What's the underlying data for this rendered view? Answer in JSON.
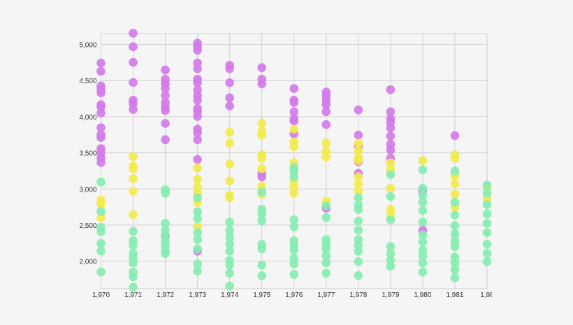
{
  "chart_data": {
    "type": "scatter",
    "title": "",
    "xlabel": "",
    "ylabel": "",
    "xlim": [
      1970,
      1982
    ],
    "ylim": [
      1620,
      5150
    ],
    "grid": true,
    "legend": "none",
    "x_ticks": [
      "1,970",
      "1,971",
      "1,972",
      "1,973",
      "1,974",
      "1,975",
      "1,976",
      "1,977",
      "1,978",
      "1,979",
      "1,980",
      "1,981",
      "1,98"
    ],
    "y_ticks": [
      "2,000",
      "2,500",
      "3,000",
      "3,500",
      "4,000",
      "4,500",
      "5,000"
    ],
    "y_tick_values": [
      2000,
      2500,
      3000,
      3500,
      4000,
      4500,
      5000
    ],
    "series": [
      {
        "color": "#d27be9",
        "points": {
          "1970": [
            4742,
            4627,
            4425,
            4377,
            4329,
            4165,
            4136,
            4050,
            3847,
            3750,
            3712,
            3558,
            3500,
            3432,
            3365
          ],
          "1971": [
            5154,
            4968,
            4752,
            4473,
            4228,
            4180,
            4100
          ],
          "1972": [
            4646,
            4518,
            4453,
            4389,
            4293,
            4196,
            4132,
            4084,
            3907,
            3682,
            2348
          ],
          "1973": [
            5016,
            4968,
            4920,
            4743,
            4663,
            4518,
            4470,
            4373,
            4293,
            4228,
            4116,
            4068,
            4003,
            3827,
            3778,
            3682,
            3409,
            2139
          ],
          "1974": [
            4711,
            4663,
            4470,
            4261,
            4148
          ],
          "1975": [
            4678,
            4518,
            4453,
            3216,
            3167
          ],
          "1976": [
            4389,
            4228,
            4196,
            4068,
            3971,
            3939,
            3762
          ],
          "1977": [
            4341,
            4293,
            4228,
            4164,
            4068,
            3891,
            2733
          ],
          "1978": [
            4093,
            3746,
            3586,
            3377,
            3216
          ],
          "1979": [
            4373,
            4068,
            3971,
            3923,
            3843,
            3730,
            3618,
            3537,
            3425
          ],
          "1980": [
            2974,
            2428
          ],
          "1981": [
            3737
          ]
        }
      },
      {
        "color": "#f1ea4c",
        "points": {
          "1970": [
            2844,
            2787,
            2604
          ],
          "1971": [
            3447,
            3312,
            3280,
            3142,
            2968,
            2643
          ],
          "1973": [
            3290,
            3136,
            3023,
            2943,
            2814,
            2476
          ],
          "1974": [
            3785,
            3634,
            3344,
            3110,
            2910,
            2878
          ],
          "1975": [
            3907,
            3794,
            3746,
            3473,
            3425,
            3280,
            3039,
            2926
          ],
          "1976": [
            3827,
            3650,
            3586,
            3361,
            3264,
            3103,
            3023,
            2943
          ],
          "1977": [
            3634,
            3521,
            3441,
            2830
          ],
          "1978": [
            3634,
            3537,
            3441,
            3393,
            3168,
            3071,
            2975
          ],
          "1979": [
            3361,
            3264,
            3007,
            2717,
            2637
          ],
          "1980": [
            3393
          ],
          "1981": [
            3473,
            3425,
            3184,
            3071,
            2926,
            2749
          ],
          "1982": [
            3023,
            2862
          ]
        }
      },
      {
        "color": "#86edb1",
        "points": {
          "1970": [
            3095,
            2690,
            2469,
            2411,
            2247,
            2141,
            1852
          ],
          "1971": [
            2412,
            2283,
            2219,
            2107,
            2042,
            1978,
            1849,
            1785,
            1640
          ],
          "1972": [
            2991,
            2942,
            2524,
            2428,
            2332,
            2268,
            2203,
            2139,
            2107
          ],
          "1973": [
            2878,
            2685,
            2589,
            2396,
            2300,
            2171,
            1962,
            1865
          ],
          "1974": [
            2541,
            2428,
            2332,
            2235,
            2139,
            2010,
            1946,
            1833,
            1656
          ],
          "1975": [
            2958,
            2717,
            2653,
            2557,
            2235,
            2171,
            1946,
            1801
          ],
          "1976": [
            3296,
            3248,
            3167,
            2573,
            2476,
            2283,
            2219,
            2155,
            2042,
            1962,
            1817
          ],
          "1977": [
            2765,
            2605,
            2300,
            2235,
            2171,
            2074,
            1978,
            1833
          ],
          "1978": [
            2878,
            2781,
            2717,
            2557,
            2428,
            2300,
            2219,
            2139,
            1994,
            1801
          ],
          "1979": [
            3200,
            2894,
            2573,
            2203,
            2107,
            2010,
            1930
          ],
          "1980": [
            3264,
            3007,
            2910,
            2814,
            2701,
            2541,
            2364,
            2268,
            2155,
            2074,
            1978,
            1849
          ],
          "1981": [
            3248,
            2814,
            2637,
            2492,
            2380,
            2283,
            2203,
            2058,
            1978,
            1881,
            1769
          ],
          "1982": [
            3055,
            2942,
            2781,
            2653,
            2524,
            2396,
            2235,
            2107,
            1994
          ]
        }
      }
    ]
  }
}
